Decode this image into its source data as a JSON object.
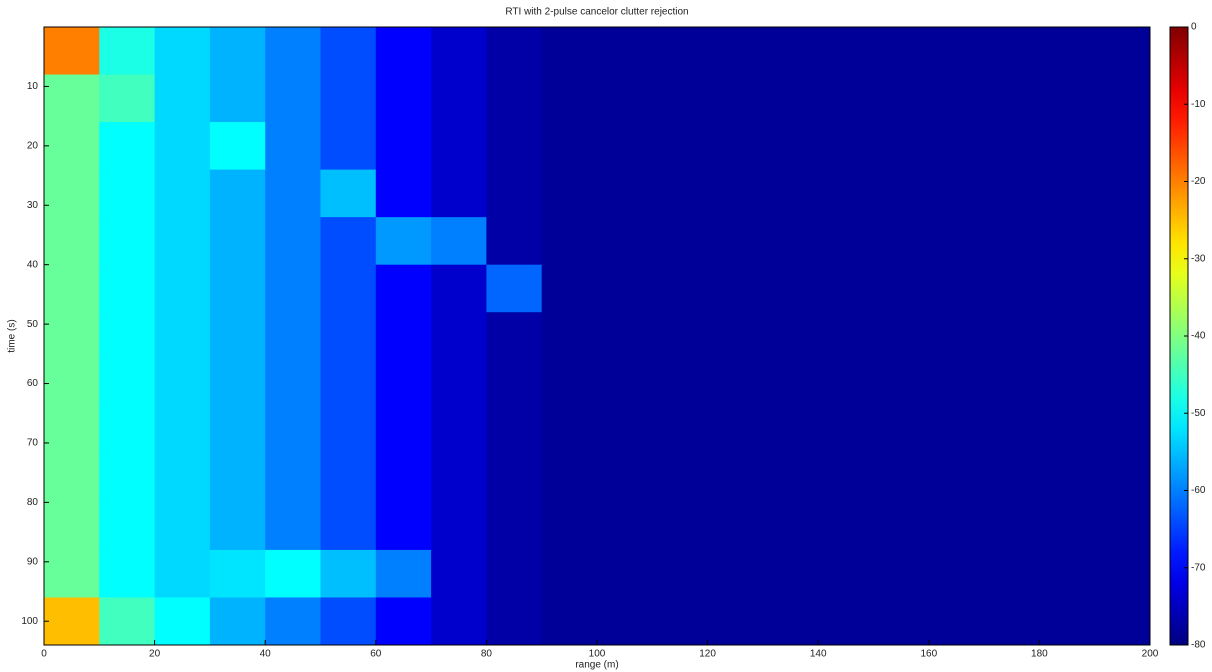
{
  "chart_data": {
    "type": "heatmap",
    "title": "RTI with 2-pulse cancelor clutter rejection",
    "x_label": "range (m)",
    "y_label": "time (s)",
    "xlim": [
      0,
      200
    ],
    "ylim": [
      0,
      104
    ],
    "xticks": [
      0,
      20,
      40,
      60,
      80,
      100,
      120,
      140,
      160,
      180,
      200
    ],
    "yticks": [
      10,
      20,
      30,
      40,
      50,
      60,
      70,
      80,
      90,
      100
    ],
    "colormap": "jet",
    "clim": [
      -80,
      0
    ],
    "cticks": [
      0,
      -10,
      -20,
      -30,
      -40,
      -50,
      -60,
      -70,
      -80
    ],
    "x": [
      5,
      15,
      25,
      35,
      45,
      55,
      65,
      75,
      85,
      95,
      105,
      115,
      125,
      135,
      145,
      155,
      165,
      175,
      185,
      195
    ],
    "y": [
      4,
      12,
      20,
      28,
      36,
      44,
      52,
      60,
      68,
      76,
      84,
      92,
      100
    ],
    "z": [
      [
        -20,
        -48,
        -53,
        -56,
        -60,
        -64,
        -70,
        -74,
        -77,
        -78,
        -78,
        -78,
        -78,
        -78,
        -78,
        -78,
        -78,
        -78,
        -78,
        -78
      ],
      [
        -42,
        -45,
        -53,
        -56,
        -60,
        -64,
        -70,
        -74,
        -77,
        -78,
        -78,
        -78,
        -78,
        -78,
        -78,
        -78,
        -78,
        -78,
        -78,
        -78
      ],
      [
        -42,
        -50,
        -53,
        -50,
        -60,
        -64,
        -70,
        -74,
        -77,
        -78,
        -78,
        -78,
        -78,
        -78,
        -78,
        -78,
        -78,
        -78,
        -78,
        -78
      ],
      [
        -42,
        -50,
        -53,
        -56,
        -60,
        -55,
        -70,
        -74,
        -77,
        -78,
        -78,
        -78,
        -78,
        -78,
        -78,
        -78,
        -78,
        -78,
        -78,
        -78
      ],
      [
        -42,
        -50,
        -53,
        -56,
        -60,
        -64,
        -58,
        -60,
        -77,
        -78,
        -78,
        -78,
        -78,
        -78,
        -78,
        -78,
        -78,
        -78,
        -78,
        -78
      ],
      [
        -42,
        -50,
        -53,
        -56,
        -60,
        -64,
        -70,
        -74,
        -62,
        -78,
        -78,
        -78,
        -78,
        -78,
        -78,
        -78,
        -78,
        -78,
        -78,
        -78
      ],
      [
        -42,
        -50,
        -53,
        -56,
        -60,
        -64,
        -70,
        -74,
        -77,
        -78,
        -78,
        -78,
        -78,
        -78,
        -78,
        -78,
        -78,
        -78,
        -78,
        -78
      ],
      [
        -42,
        -50,
        -53,
        -56,
        -60,
        -64,
        -70,
        -74,
        -77,
        -78,
        -78,
        -78,
        -78,
        -78,
        -78,
        -78,
        -78,
        -78,
        -78,
        -78
      ],
      [
        -42,
        -50,
        -53,
        -56,
        -60,
        -64,
        -70,
        -74,
        -77,
        -78,
        -78,
        -78,
        -78,
        -78,
        -78,
        -78,
        -78,
        -78,
        -78,
        -78
      ],
      [
        -42,
        -50,
        -53,
        -56,
        -60,
        -64,
        -70,
        -74,
        -77,
        -78,
        -78,
        -78,
        -78,
        -78,
        -78,
        -78,
        -78,
        -78,
        -78,
        -78
      ],
      [
        -42,
        -50,
        -53,
        -56,
        -60,
        -64,
        -70,
        -74,
        -77,
        -78,
        -78,
        -78,
        -78,
        -78,
        -78,
        -78,
        -78,
        -78,
        -78,
        -78
      ],
      [
        -42,
        -50,
        -53,
        -52,
        -50,
        -55,
        -60,
        -74,
        -77,
        -78,
        -78,
        -78,
        -78,
        -78,
        -78,
        -78,
        -78,
        -78,
        -78,
        -78
      ],
      [
        -25,
        -45,
        -50,
        -56,
        -60,
        -64,
        -70,
        -74,
        -77,
        -78,
        -78,
        -78,
        -78,
        -78,
        -78,
        -78,
        -78,
        -78,
        -78,
        -78
      ]
    ]
  }
}
